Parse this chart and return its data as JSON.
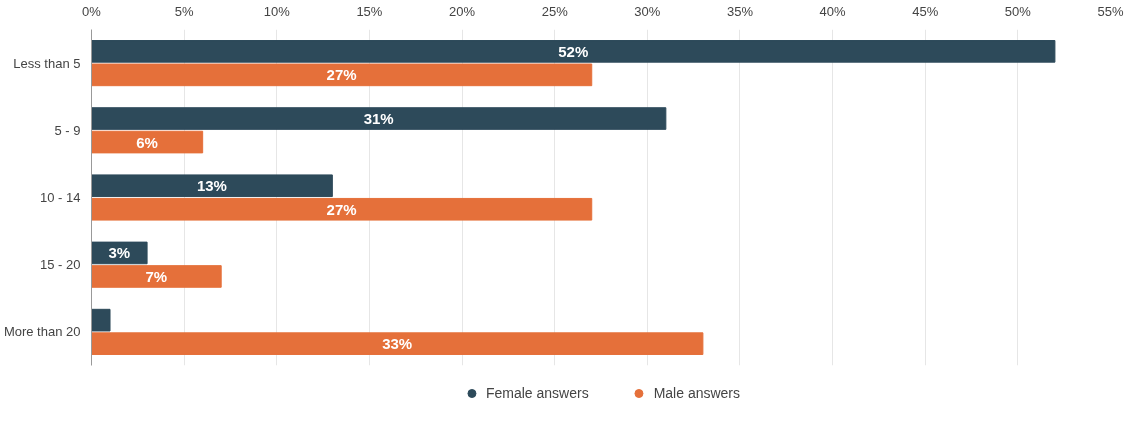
{
  "chart_data": {
    "type": "bar",
    "orientation": "horizontal",
    "categories": [
      "Less than 5",
      "5 - 9",
      "10 - 14",
      "15 - 20",
      "More than 20"
    ],
    "series": [
      {
        "name": "Female answers",
        "color": "#2d4a5a",
        "values": [
          52,
          31,
          13,
          3,
          1
        ],
        "value_labels": [
          "52%",
          "31%",
          "13%",
          "3%",
          null
        ]
      },
      {
        "name": "Male answers",
        "color": "#e5703a",
        "values": [
          27,
          6,
          27,
          7,
          33
        ],
        "value_labels": [
          "27%",
          "6%",
          "27%",
          "7%",
          "33%"
        ]
      }
    ],
    "xlim": [
      0,
      55
    ],
    "xticks": [
      {
        "value": 0,
        "label": "0%"
      },
      {
        "value": 5,
        "label": "5%"
      },
      {
        "value": 10,
        "label": "10%"
      },
      {
        "value": 15,
        "label": "15%"
      },
      {
        "value": 20,
        "label": "20%"
      },
      {
        "value": 25,
        "label": "25%"
      },
      {
        "value": 30,
        "label": "30%"
      },
      {
        "value": 35,
        "label": "35%"
      },
      {
        "value": 40,
        "label": "40%"
      },
      {
        "value": 45,
        "label": "45%"
      },
      {
        "value": 50,
        "label": "50%"
      },
      {
        "value": 55,
        "label": "55%"
      }
    ],
    "grid": "x",
    "legend": "bottom"
  }
}
